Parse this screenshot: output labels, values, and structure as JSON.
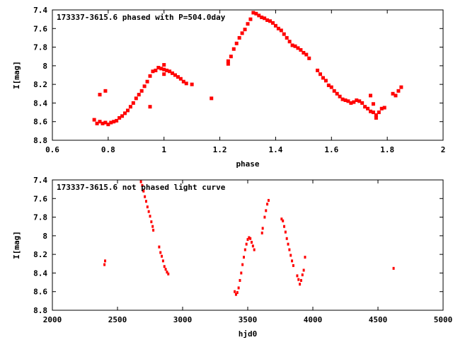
{
  "chart_data": [
    {
      "type": "scatter",
      "title": "173337-3615.6 phased with P=504.0day",
      "xlabel": "phase",
      "ylabel": "I[mag]",
      "xlim": [
        0.6,
        2.0
      ],
      "ylim": [
        7.4,
        8.8
      ],
      "y_inverted": true,
      "x_ticks": [
        "0.6",
        "0.8",
        "1",
        "1.2",
        "1.4",
        "1.6",
        "1.8",
        "2"
      ],
      "y_ticks": [
        "7.4",
        "7.6",
        "7.8",
        "8",
        "8.2",
        "8.4",
        "8.6",
        "8.8"
      ],
      "grid": false,
      "legend": "none",
      "marker_color": "#ff0000",
      "series": [
        {
          "points": [
            [
              0.75,
              8.58
            ],
            [
              0.76,
              8.62
            ],
            [
              0.77,
              8.6
            ],
            [
              0.78,
              8.62
            ],
            [
              0.79,
              8.61
            ],
            [
              0.8,
              8.63
            ],
            [
              0.81,
              8.61
            ],
            [
              0.82,
              8.6
            ],
            [
              0.83,
              8.59
            ],
            [
              0.84,
              8.56
            ],
            [
              0.85,
              8.54
            ],
            [
              0.86,
              8.51
            ],
            [
              0.87,
              8.48
            ],
            [
              0.88,
              8.44
            ],
            [
              0.89,
              8.4
            ],
            [
              0.9,
              8.35
            ],
            [
              0.91,
              8.31
            ],
            [
              0.92,
              8.27
            ],
            [
              0.93,
              8.22
            ],
            [
              0.94,
              8.17
            ],
            [
              0.95,
              8.11
            ],
            [
              0.96,
              8.06
            ],
            [
              0.97,
              8.05
            ],
            [
              0.98,
              8.02
            ],
            [
              0.99,
              8.03
            ],
            [
              1.0,
              8.04
            ],
            [
              1.01,
              8.05
            ],
            [
              1.02,
              8.06
            ],
            [
              1.03,
              8.08
            ],
            [
              1.04,
              8.1
            ],
            [
              1.05,
              8.12
            ],
            [
              1.06,
              8.14
            ],
            [
              1.07,
              8.17
            ],
            [
              1.08,
              8.19
            ],
            [
              0.77,
              8.31
            ],
            [
              0.79,
              8.27
            ],
            [
              0.95,
              8.44
            ],
            [
              1.0,
              7.99
            ],
            [
              1.0,
              8.09
            ],
            [
              1.1,
              8.2
            ],
            [
              1.17,
              8.35
            ],
            [
              1.23,
              7.98
            ],
            [
              1.23,
              7.95
            ],
            [
              1.24,
              7.9
            ],
            [
              1.25,
              7.82
            ],
            [
              1.26,
              7.76
            ],
            [
              1.27,
              7.7
            ],
            [
              1.28,
              7.65
            ],
            [
              1.29,
              7.61
            ],
            [
              1.3,
              7.55
            ],
            [
              1.31,
              7.5
            ],
            [
              1.32,
              7.43
            ],
            [
              1.33,
              7.44
            ],
            [
              1.34,
              7.46
            ],
            [
              1.35,
              7.48
            ],
            [
              1.36,
              7.49
            ],
            [
              1.37,
              7.51
            ],
            [
              1.38,
              7.52
            ],
            [
              1.39,
              7.54
            ],
            [
              1.4,
              7.57
            ],
            [
              1.41,
              7.6
            ],
            [
              1.42,
              7.62
            ],
            [
              1.43,
              7.66
            ],
            [
              1.44,
              7.7
            ],
            [
              1.45,
              7.74
            ],
            [
              1.46,
              7.78
            ],
            [
              1.47,
              7.79
            ],
            [
              1.48,
              7.81
            ],
            [
              1.49,
              7.83
            ],
            [
              1.5,
              7.86
            ],
            [
              1.51,
              7.88
            ],
            [
              1.52,
              7.92
            ],
            [
              1.55,
              8.05
            ],
            [
              1.56,
              8.09
            ],
            [
              1.57,
              8.13
            ],
            [
              1.58,
              8.16
            ],
            [
              1.59,
              8.21
            ],
            [
              1.6,
              8.23
            ],
            [
              1.61,
              8.27
            ],
            [
              1.62,
              8.3
            ],
            [
              1.63,
              8.33
            ],
            [
              1.64,
              8.36
            ],
            [
              1.65,
              8.37
            ],
            [
              1.66,
              8.38
            ],
            [
              1.67,
              8.4
            ],
            [
              1.68,
              8.39
            ],
            [
              1.69,
              8.37
            ],
            [
              1.7,
              8.38
            ],
            [
              1.71,
              8.4
            ],
            [
              1.72,
              8.44
            ],
            [
              1.73,
              8.46
            ],
            [
              1.74,
              8.49
            ],
            [
              1.75,
              8.5
            ],
            [
              1.76,
              8.53
            ],
            [
              1.77,
              8.5
            ],
            [
              1.78,
              8.46
            ],
            [
              1.79,
              8.45
            ],
            [
              1.74,
              8.32
            ],
            [
              1.75,
              8.41
            ],
            [
              1.76,
              8.56
            ],
            [
              1.82,
              8.3
            ],
            [
              1.83,
              8.32
            ],
            [
              1.84,
              8.27
            ],
            [
              1.85,
              8.23
            ]
          ]
        }
      ]
    },
    {
      "type": "scatter",
      "title": "173337-3615.6 not phased light curve",
      "xlabel": "hjd0",
      "ylabel": "I[mag]",
      "xlim": [
        2000,
        5000
      ],
      "ylim": [
        7.4,
        8.8
      ],
      "y_inverted": true,
      "x_ticks": [
        "2000",
        "2500",
        "3000",
        "3500",
        "4000",
        "4500",
        "5000"
      ],
      "y_ticks": [
        "7.4",
        "7.6",
        "7.8",
        "8",
        "8.2",
        "8.4",
        "8.6",
        "8.8"
      ],
      "grid": false,
      "legend": "none",
      "marker_color": "#ff0000",
      "series": [
        {
          "points": [
            [
              2400,
              8.31
            ],
            [
              2405,
              8.27
            ],
            [
              2680,
              7.42
            ],
            [
              2690,
              7.46
            ],
            [
              2700,
              7.52
            ],
            [
              2710,
              7.58
            ],
            [
              2720,
              7.63
            ],
            [
              2730,
              7.69
            ],
            [
              2740,
              7.74
            ],
            [
              2750,
              7.79
            ],
            [
              2760,
              7.85
            ],
            [
              2770,
              7.9
            ],
            [
              2775,
              7.94
            ],
            [
              2820,
              8.12
            ],
            [
              2830,
              8.18
            ],
            [
              2840,
              8.22
            ],
            [
              2850,
              8.27
            ],
            [
              2860,
              8.33
            ],
            [
              2870,
              8.36
            ],
            [
              2880,
              8.39
            ],
            [
              2890,
              8.41
            ],
            [
              3400,
              8.6
            ],
            [
              3410,
              8.63
            ],
            [
              3420,
              8.61
            ],
            [
              3430,
              8.56
            ],
            [
              3440,
              8.48
            ],
            [
              3450,
              8.4
            ],
            [
              3460,
              8.31
            ],
            [
              3470,
              8.23
            ],
            [
              3480,
              8.15
            ],
            [
              3490,
              8.09
            ],
            [
              3500,
              8.04
            ],
            [
              3510,
              8.02
            ],
            [
              3520,
              8.03
            ],
            [
              3530,
              8.07
            ],
            [
              3540,
              8.11
            ],
            [
              3550,
              8.15
            ],
            [
              3610,
              7.97
            ],
            [
              3615,
              7.92
            ],
            [
              3630,
              7.8
            ],
            [
              3640,
              7.73
            ],
            [
              3650,
              7.66
            ],
            [
              3660,
              7.62
            ],
            [
              3760,
              7.82
            ],
            [
              3770,
              7.84
            ],
            [
              3780,
              7.9
            ],
            [
              3790,
              7.96
            ],
            [
              3800,
              8.03
            ],
            [
              3810,
              8.09
            ],
            [
              3820,
              8.15
            ],
            [
              3830,
              8.21
            ],
            [
              3840,
              8.27
            ],
            [
              3850,
              8.32
            ],
            [
              3880,
              8.43
            ],
            [
              3890,
              8.47
            ],
            [
              3900,
              8.52
            ],
            [
              3910,
              8.48
            ],
            [
              3920,
              8.42
            ],
            [
              3930,
              8.37
            ],
            [
              3940,
              8.23
            ],
            [
              4620,
              8.35
            ]
          ]
        }
      ]
    }
  ]
}
